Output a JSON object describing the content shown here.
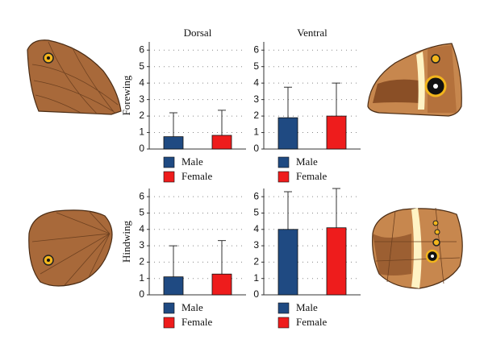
{
  "chart_data": [
    {
      "type": "bar",
      "title": "Dorsal",
      "y_label": "Forewing",
      "ylim": [
        0,
        6.5
      ],
      "yticks": [
        0,
        1,
        2,
        3,
        4,
        5,
        6
      ],
      "grid": true,
      "series": [
        {
          "name": "Male",
          "color": "#1f4a82",
          "values": [
            0.75
          ],
          "errors": [
            1.45
          ]
        },
        {
          "name": "Female",
          "color": "#ee1c1c",
          "values": [
            0.83
          ],
          "errors": [
            1.52
          ]
        }
      ]
    },
    {
      "type": "bar",
      "title": "Ventral",
      "ylim": [
        0,
        6.5
      ],
      "yticks": [
        0,
        1,
        2,
        3,
        4,
        5,
        6
      ],
      "grid": true,
      "series": [
        {
          "name": "Male",
          "color": "#1f4a82",
          "values": [
            1.9
          ],
          "errors": [
            1.85
          ]
        },
        {
          "name": "Female",
          "color": "#ee1c1c",
          "values": [
            2.0
          ],
          "errors": [
            2.0
          ]
        }
      ]
    },
    {
      "type": "bar",
      "y_label": "Hindwing",
      "ylim": [
        0,
        6.5
      ],
      "yticks": [
        0,
        1,
        2,
        3,
        4,
        5,
        6
      ],
      "grid": true,
      "series": [
        {
          "name": "Male",
          "color": "#1f4a82",
          "values": [
            1.1
          ],
          "errors": [
            1.9
          ]
        },
        {
          "name": "Female",
          "color": "#ee1c1c",
          "values": [
            1.27
          ],
          "errors": [
            2.05
          ]
        }
      ]
    },
    {
      "type": "bar",
      "ylim": [
        0,
        6.5
      ],
      "yticks": [
        0,
        1,
        2,
        3,
        4,
        5,
        6
      ],
      "grid": true,
      "series": [
        {
          "name": "Male",
          "color": "#1f4a82",
          "values": [
            4.0
          ],
          "errors": [
            2.3
          ]
        },
        {
          "name": "Female",
          "color": "#ee1c1c",
          "values": [
            4.1
          ],
          "errors": [
            2.4
          ]
        }
      ]
    }
  ]
}
